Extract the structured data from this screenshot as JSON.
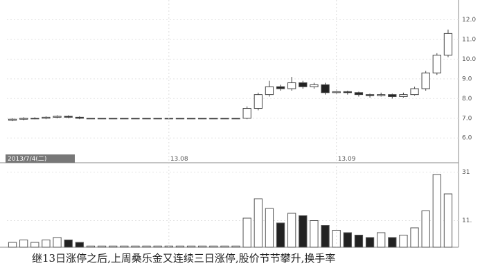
{
  "chart_data": {
    "type": "candlestick",
    "cursor_label": "2013/7/4(二)",
    "categories": [
      null,
      null,
      null,
      null,
      null,
      null,
      null,
      null,
      null,
      null,
      null,
      null,
      null,
      null,
      "13.08",
      null,
      null,
      null,
      null,
      null,
      null,
      null,
      null,
      null,
      null,
      null,
      null,
      null,
      null,
      "13.09",
      null,
      null,
      null,
      null,
      null,
      null,
      null,
      null,
      null,
      null
    ],
    "open": [
      6.9,
      6.95,
      7.0,
      7.0,
      7.05,
      7.1,
      7.05,
      7,
      7,
      7,
      7,
      7,
      7,
      7,
      7,
      7,
      7,
      7,
      7,
      7,
      7,
      7.0,
      7.5,
      8.2,
      8.6,
      8.5,
      8.8,
      8.6,
      8.7,
      8.3,
      8.35,
      8.3,
      8.2,
      8.15,
      8.2,
      8.1,
      8.2,
      8.5,
      9.3,
      10.2
    ],
    "high": [
      7.0,
      7.05,
      7.05,
      7.1,
      7.15,
      7.15,
      7.1,
      7,
      7,
      7,
      7,
      7,
      7,
      7,
      7,
      7,
      7,
      7,
      7,
      7,
      7,
      7.6,
      8.3,
      8.9,
      8.7,
      9.1,
      8.9,
      8.8,
      8.8,
      8.45,
      8.4,
      8.35,
      8.25,
      8.3,
      8.25,
      8.3,
      8.6,
      9.4,
      10.3,
      11.5
    ],
    "low": [
      6.85,
      6.9,
      6.95,
      6.95,
      7.0,
      7.0,
      6.95,
      7,
      7,
      7,
      7,
      7,
      7,
      7,
      7,
      7,
      7,
      7,
      7,
      7,
      7,
      6.95,
      7.4,
      8.1,
      8.4,
      8.4,
      8.5,
      8.5,
      8.2,
      8.25,
      8.2,
      8.1,
      8.05,
      8.1,
      8.0,
      8.05,
      8.15,
      8.4,
      9.2,
      10.1
    ],
    "close": [
      6.95,
      7.0,
      7.0,
      7.05,
      7.1,
      7.05,
      7.0,
      7,
      7,
      7,
      7,
      7,
      7,
      7,
      7,
      7,
      7,
      7,
      7,
      7,
      7,
      7.5,
      8.2,
      8.6,
      8.5,
      8.8,
      8.6,
      8.7,
      8.3,
      8.35,
      8.3,
      8.2,
      8.15,
      8.2,
      8.1,
      8.2,
      8.5,
      9.3,
      10.2,
      11.3
    ],
    "volume": [
      2,
      3,
      2,
      3,
      4,
      3,
      2,
      0.5,
      0.5,
      0.5,
      0.5,
      0.5,
      0.5,
      0.5,
      0.5,
      0.5,
      0.5,
      0.5,
      0.5,
      0.5,
      0.5,
      12,
      20,
      16,
      10,
      14,
      13,
      11,
      9,
      7,
      6,
      5,
      4,
      6,
      4,
      5,
      8,
      15,
      30,
      22
    ],
    "ylim": [
      5.2,
      13.0
    ],
    "yticks": [
      {
        "value": 12,
        "label": "12.0"
      },
      {
        "value": 11,
        "label": "11.0"
      },
      {
        "value": 10,
        "label": "10.0"
      },
      {
        "value": 9,
        "label": "9.0"
      },
      {
        "value": 8,
        "label": "8.0"
      },
      {
        "value": 7,
        "label": "7.0"
      },
      {
        "value": 6,
        "label": "6.0"
      }
    ],
    "volume_lim": [
      0,
      34
    ],
    "volume_ticks": [
      31,
      {
        "value": 11,
        "label": "11."
      }
    ],
    "grid": true
  },
  "caption": "继13日涨停之后,上周桑乐金又连续三日涨停,股价节节攀升,换手率"
}
